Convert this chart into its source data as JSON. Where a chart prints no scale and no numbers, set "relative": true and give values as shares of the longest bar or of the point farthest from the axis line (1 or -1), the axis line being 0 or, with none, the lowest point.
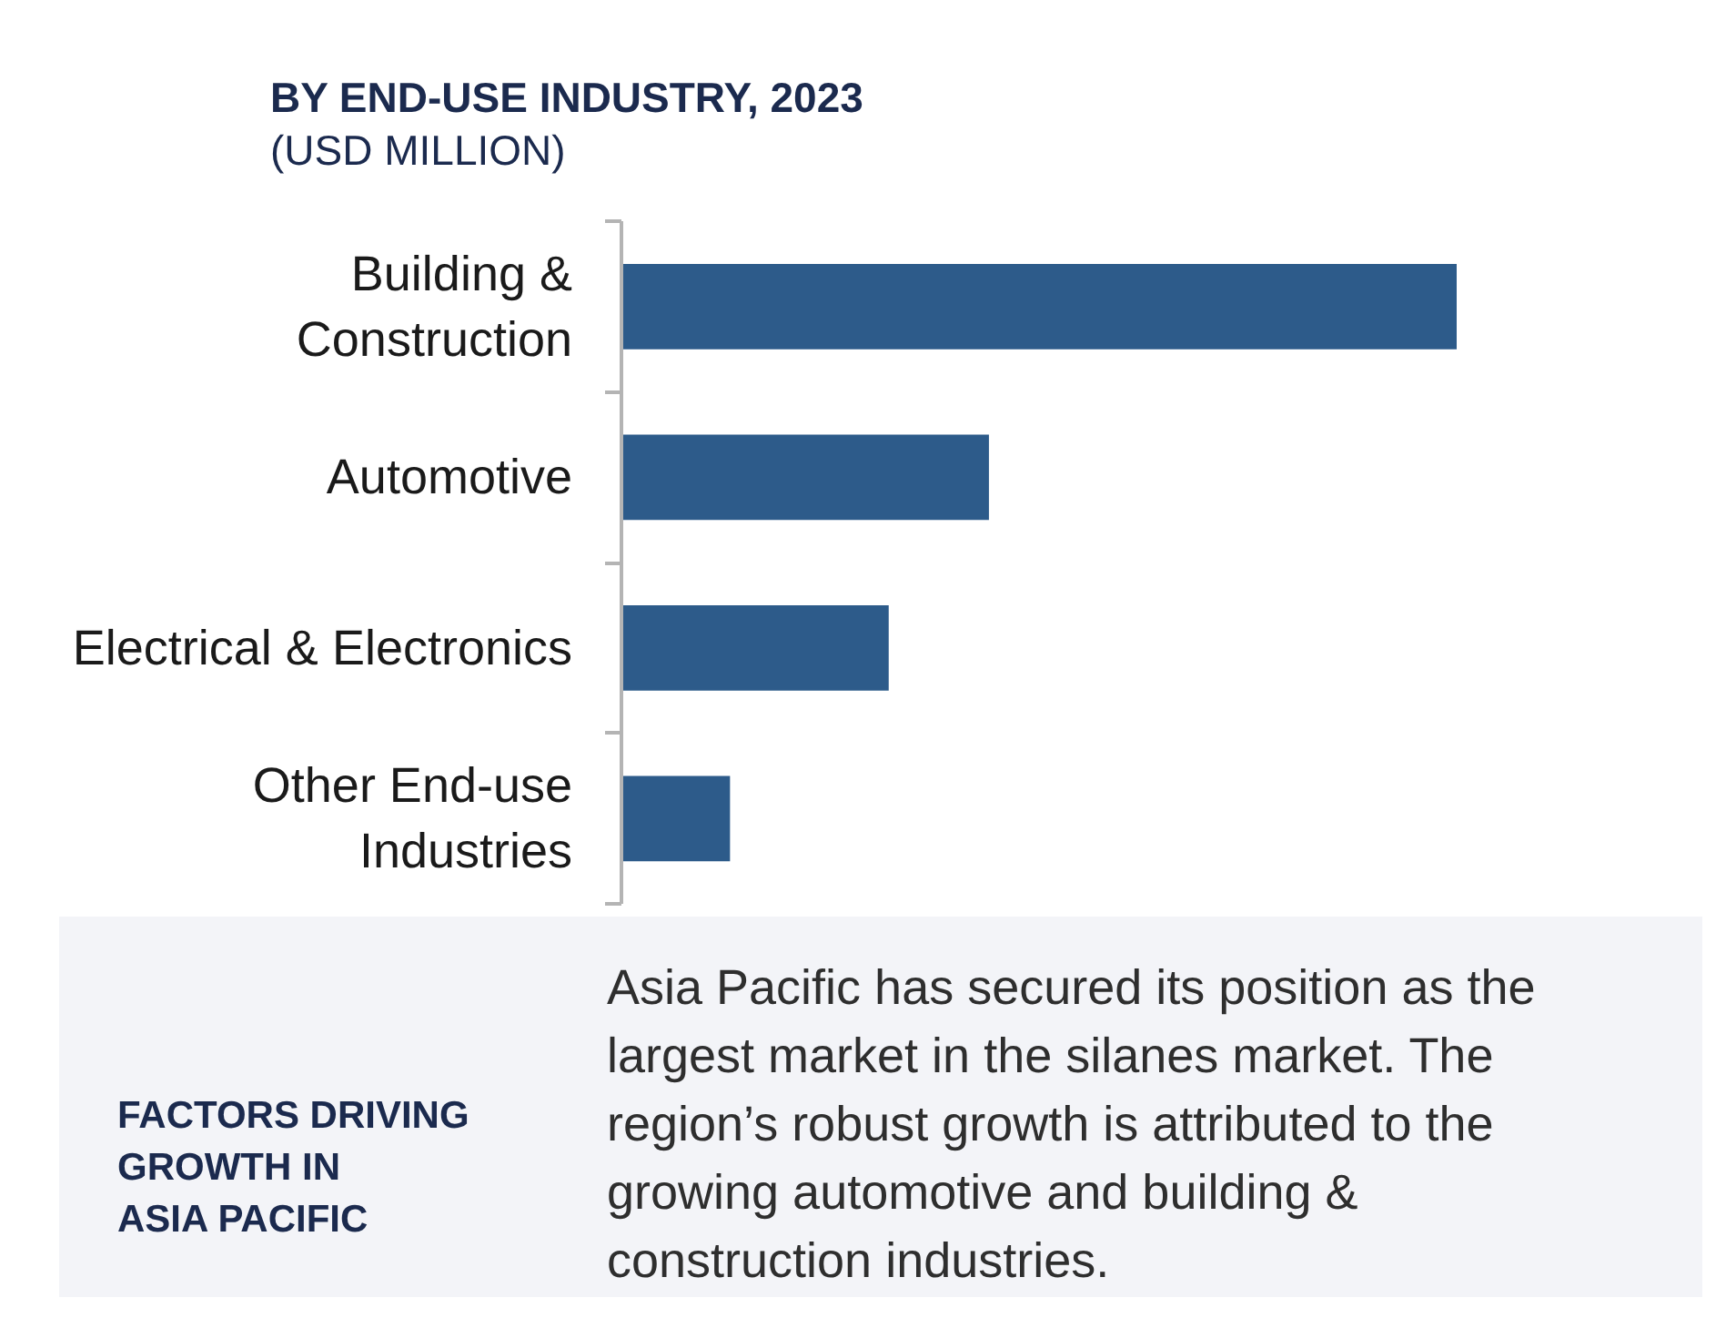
{
  "chart_data": {
    "type": "bar",
    "orientation": "horizontal",
    "relative": true,
    "title": "BY END-USE INDUSTRY, 2023",
    "subtitle": "(USD MILLION)",
    "categories": [
      "Building &\nConstruction",
      "Automotive",
      "Electrical & Electronics",
      "Other End-use\nIndustries"
    ],
    "values": [
      1,
      0.44,
      0.32,
      0.13
    ],
    "color": "#2d5b8a",
    "annotations": [
      "FACTORS DRIVING\nGROWTH IN\nASIA PACIFIC",
      "Asia Pacific has secured its position as the largest market in the silanes market. The region’s robust growth is attributed to the growing automotive and building & construction industries."
    ]
  }
}
